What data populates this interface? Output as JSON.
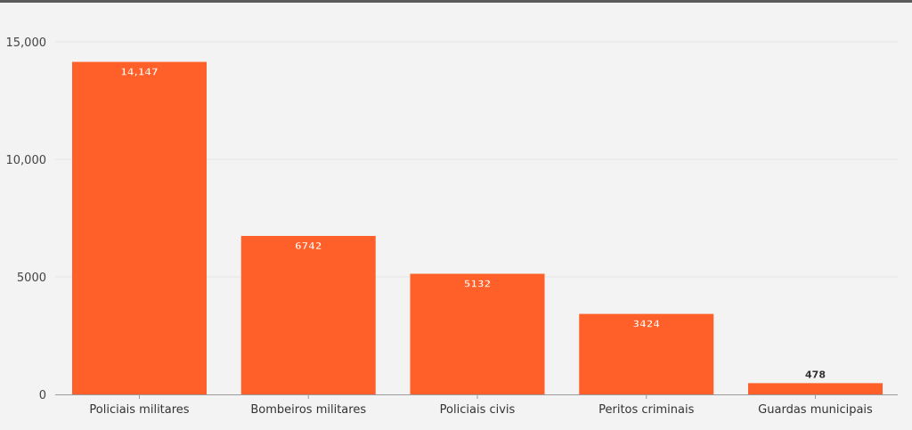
{
  "chart_data": {
    "type": "bar",
    "title": "",
    "xlabel": "",
    "ylabel": "",
    "categories": [
      "Policiais militares",
      "Bombeiros militares",
      "Policiais civis",
      "Peritos criminais",
      "Guardas municipais"
    ],
    "values": [
      14147,
      6742,
      5132,
      3424,
      478
    ],
    "value_labels": [
      "14,147",
      "6742",
      "5132",
      "3424",
      "478"
    ],
    "ylim": [
      0,
      15000
    ],
    "yticks": [
      0,
      5000,
      10000,
      15000
    ],
    "ytick_labels": [
      "0",
      "5000",
      "10,000",
      "15,000"
    ],
    "grid": true,
    "legend": "none",
    "colors": {
      "bar": "#ff6029",
      "grid": "#e6e6e6",
      "axis": "#9a9a9a",
      "label_inside": "#ffffff",
      "label_outside": "#333333",
      "background": "#f3f3f3"
    }
  }
}
